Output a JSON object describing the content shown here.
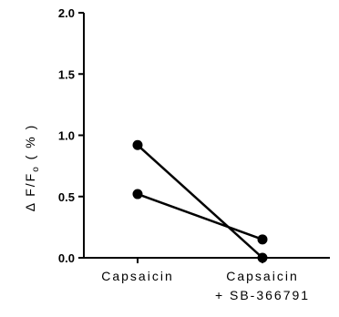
{
  "chart_data": {
    "type": "line",
    "title": "",
    "xlabel": "",
    "ylabel": "Δ F/F₀ (%)",
    "ylabel_parts": {
      "delta": "Δ",
      "main": " F/F",
      "sub": "o",
      "unit": " ( % )"
    },
    "categories": [
      [
        "Capsaicin"
      ],
      [
        "Capsaicin",
        "+ SB-366791"
      ]
    ],
    "ylim": [
      0,
      2.0
    ],
    "yticks": [
      0.0,
      0.5,
      1.0,
      1.5,
      2.0
    ],
    "ytick_labels": [
      "0.0",
      "0.5",
      "1.0",
      "1.5",
      "2.0"
    ],
    "grid": false,
    "legend": "none",
    "series": [
      {
        "values": [
          0.92,
          0.0
        ]
      },
      {
        "values": [
          0.52,
          0.15
        ]
      }
    ],
    "colors": {
      "line": "#000000",
      "marker": "#000000"
    }
  }
}
